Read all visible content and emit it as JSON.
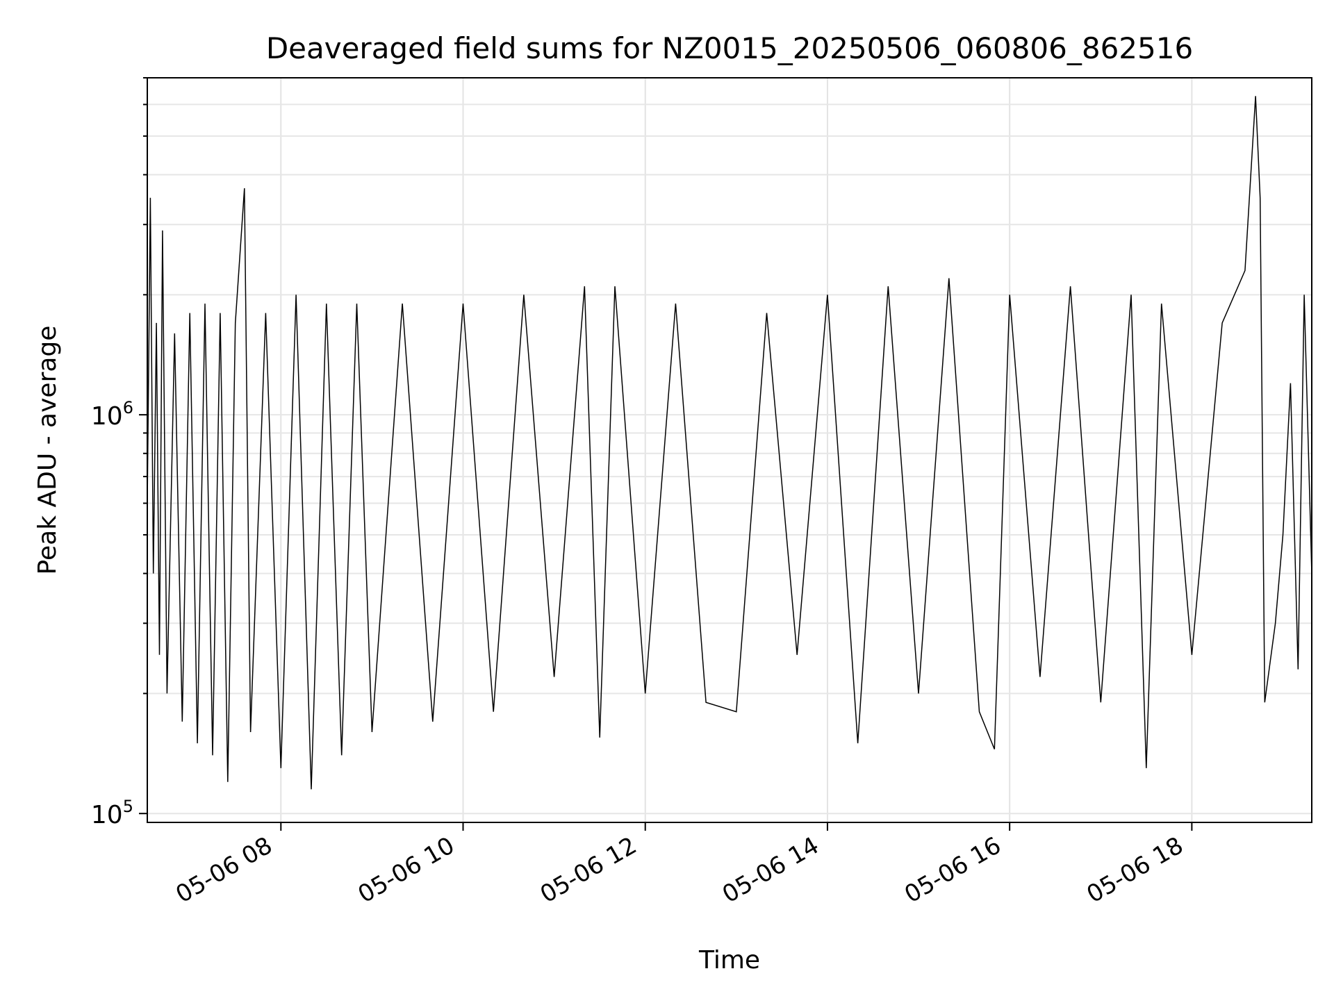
{
  "chart_data": {
    "type": "line",
    "title": "Deaveraged field sums for NZ0015_20250506_060806_862516",
    "xlabel": "Time",
    "ylabel": "Peak ADU - average",
    "y_scale": "log",
    "ylim": [
      95000,
      7000000
    ],
    "xlim": [
      "2025-05-06 06:32",
      "2025-05-06 19:19"
    ],
    "grid": true,
    "line_color": "#000000",
    "x_ticks": [
      {
        "value": "2025-05-06 08:00",
        "label": "05-06 08"
      },
      {
        "value": "2025-05-06 10:00",
        "label": "05-06 10"
      },
      {
        "value": "2025-05-06 12:00",
        "label": "05-06 12"
      },
      {
        "value": "2025-05-06 14:00",
        "label": "05-06 14"
      },
      {
        "value": "2025-05-06 16:00",
        "label": "05-06 16"
      },
      {
        "value": "2025-05-06 18:00",
        "label": "05-06 18"
      }
    ],
    "y_ticks": [
      {
        "value": 100000,
        "label_base": "10",
        "label_exp": "5"
      },
      {
        "value": 1000000,
        "label_base": "10",
        "label_exp": "6"
      }
    ],
    "series": [
      {
        "points": [
          [
            "2025-05-06 06:32",
            600000
          ],
          [
            "2025-05-06 06:34",
            3500000
          ],
          [
            "2025-05-06 06:36",
            400000
          ],
          [
            "2025-05-06 06:38",
            1700000
          ],
          [
            "2025-05-06 06:40",
            250000
          ],
          [
            "2025-05-06 06:42",
            2900000
          ],
          [
            "2025-05-06 06:45",
            200000
          ],
          [
            "2025-05-06 06:50",
            1600000
          ],
          [
            "2025-05-06 06:55",
            170000
          ],
          [
            "2025-05-06 07:00",
            1800000
          ],
          [
            "2025-05-06 07:05",
            150000
          ],
          [
            "2025-05-06 07:10",
            1900000
          ],
          [
            "2025-05-06 07:15",
            140000
          ],
          [
            "2025-05-06 07:20",
            1800000
          ],
          [
            "2025-05-06 07:25",
            120000
          ],
          [
            "2025-05-06 07:30",
            1700000
          ],
          [
            "2025-05-06 07:36",
            3700000
          ],
          [
            "2025-05-06 07:40",
            160000
          ],
          [
            "2025-05-06 07:50",
            1800000
          ],
          [
            "2025-05-06 08:00",
            130000
          ],
          [
            "2025-05-06 08:10",
            2000000
          ],
          [
            "2025-05-06 08:20",
            115000
          ],
          [
            "2025-05-06 08:30",
            1900000
          ],
          [
            "2025-05-06 08:40",
            140000
          ],
          [
            "2025-05-06 08:50",
            1900000
          ],
          [
            "2025-05-06 09:00",
            160000
          ],
          [
            "2025-05-06 09:20",
            1900000
          ],
          [
            "2025-05-06 09:40",
            170000
          ],
          [
            "2025-05-06 10:00",
            1900000
          ],
          [
            "2025-05-06 10:20",
            180000
          ],
          [
            "2025-05-06 10:40",
            2000000
          ],
          [
            "2025-05-06 11:00",
            220000
          ],
          [
            "2025-05-06 11:20",
            2100000
          ],
          [
            "2025-05-06 11:30",
            155000
          ],
          [
            "2025-05-06 11:40",
            2100000
          ],
          [
            "2025-05-06 12:00",
            200000
          ],
          [
            "2025-05-06 12:20",
            1900000
          ],
          [
            "2025-05-06 12:40",
            190000
          ],
          [
            "2025-05-06 13:00",
            180000
          ],
          [
            "2025-05-06 13:20",
            1800000
          ],
          [
            "2025-05-06 13:40",
            250000
          ],
          [
            "2025-05-06 14:00",
            2000000
          ],
          [
            "2025-05-06 14:20",
            150000
          ],
          [
            "2025-05-06 14:40",
            2100000
          ],
          [
            "2025-05-06 15:00",
            200000
          ],
          [
            "2025-05-06 15:20",
            2200000
          ],
          [
            "2025-05-06 15:40",
            180000
          ],
          [
            "2025-05-06 15:50",
            145000
          ],
          [
            "2025-05-06 16:00",
            2000000
          ],
          [
            "2025-05-06 16:20",
            220000
          ],
          [
            "2025-05-06 16:40",
            2100000
          ],
          [
            "2025-05-06 17:00",
            190000
          ],
          [
            "2025-05-06 17:20",
            2000000
          ],
          [
            "2025-05-06 17:30",
            130000
          ],
          [
            "2025-05-06 17:40",
            1900000
          ],
          [
            "2025-05-06 18:00",
            250000
          ],
          [
            "2025-05-06 18:20",
            1700000
          ],
          [
            "2025-05-06 18:35",
            2300000
          ],
          [
            "2025-05-06 18:42",
            6300000
          ],
          [
            "2025-05-06 18:45",
            3500000
          ],
          [
            "2025-05-06 18:48",
            190000
          ],
          [
            "2025-05-06 18:55",
            300000
          ],
          [
            "2025-05-06 19:00",
            500000
          ],
          [
            "2025-05-06 19:05",
            1200000
          ],
          [
            "2025-05-06 19:10",
            230000
          ],
          [
            "2025-05-06 19:14",
            2000000
          ],
          [
            "2025-05-06 19:19",
            400000
          ]
        ]
      }
    ]
  }
}
